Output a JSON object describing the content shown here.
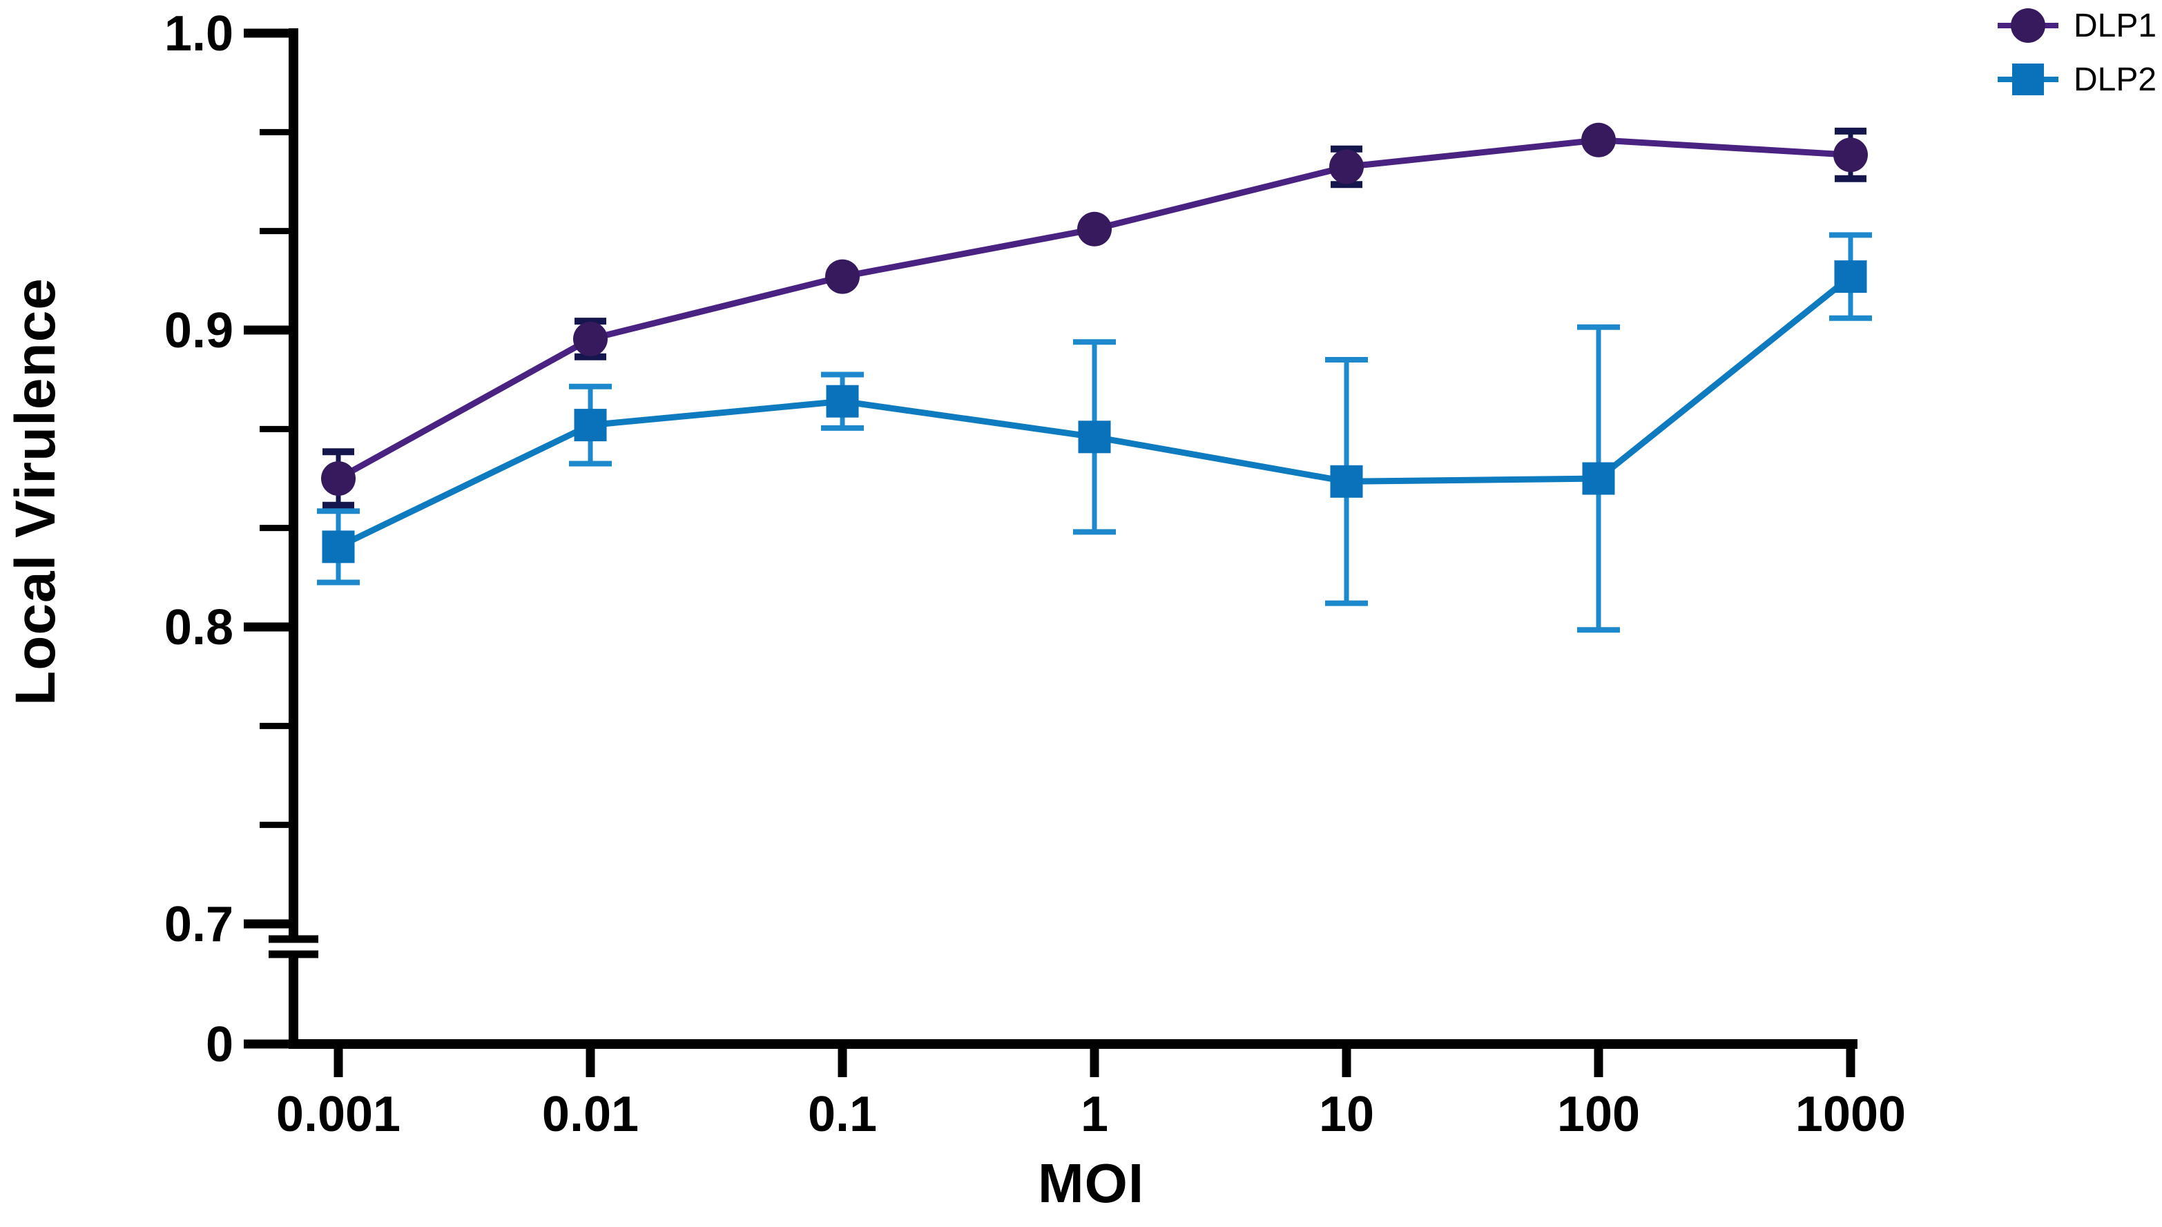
{
  "background_color": "#ffffff",
  "axis_color": "#000000",
  "chart_data": {
    "type": "line",
    "title": "",
    "xlabel": "MOI",
    "ylabel": "Local Virulence",
    "x_scale": "log",
    "grid": false,
    "legend_position": "top-right",
    "categories": [
      0.001,
      0.01,
      0.1,
      1,
      10,
      100,
      1000
    ],
    "x_tick_labels": [
      "0.001",
      "0.01",
      "0.1",
      "1",
      "10",
      "100",
      "1000"
    ],
    "y_ticks": [
      {
        "label": "1.0",
        "value": 1.0
      },
      {
        "label": "0.9",
        "value": 0.9
      },
      {
        "label": "0.8",
        "value": 0.8
      },
      {
        "label": "0.7",
        "value": 0.7
      },
      {
        "label": "0",
        "value": 0
      }
    ],
    "y_axis": {
      "linear_min": 0.7,
      "linear_max": 1.0,
      "axis_break_below": 0.7,
      "minor_intervals_per_major": 3
    },
    "series": [
      {
        "name": "DLP1",
        "marker": "circle",
        "marker_color": "#371A5E",
        "line_color": "#4A2282",
        "error_color": "#16164E",
        "values": [
          0.85,
          0.897,
          0.918,
          0.934,
          0.955,
          0.964,
          0.959
        ],
        "errors": [
          0.009,
          0.006,
          0,
          0,
          0.006,
          0,
          0.008
        ]
      },
      {
        "name": "DLP2",
        "marker": "square",
        "marker_color": "#0A72BA",
        "line_color": "#0E7ABF",
        "error_color": "#1E88CD",
        "values": [
          0.827,
          0.868,
          0.876,
          0.864,
          0.849,
          0.85,
          0.918
        ],
        "errors": [
          0.012,
          0.013,
          0.009,
          0.032,
          0.041,
          0.051,
          0.014
        ]
      }
    ]
  }
}
